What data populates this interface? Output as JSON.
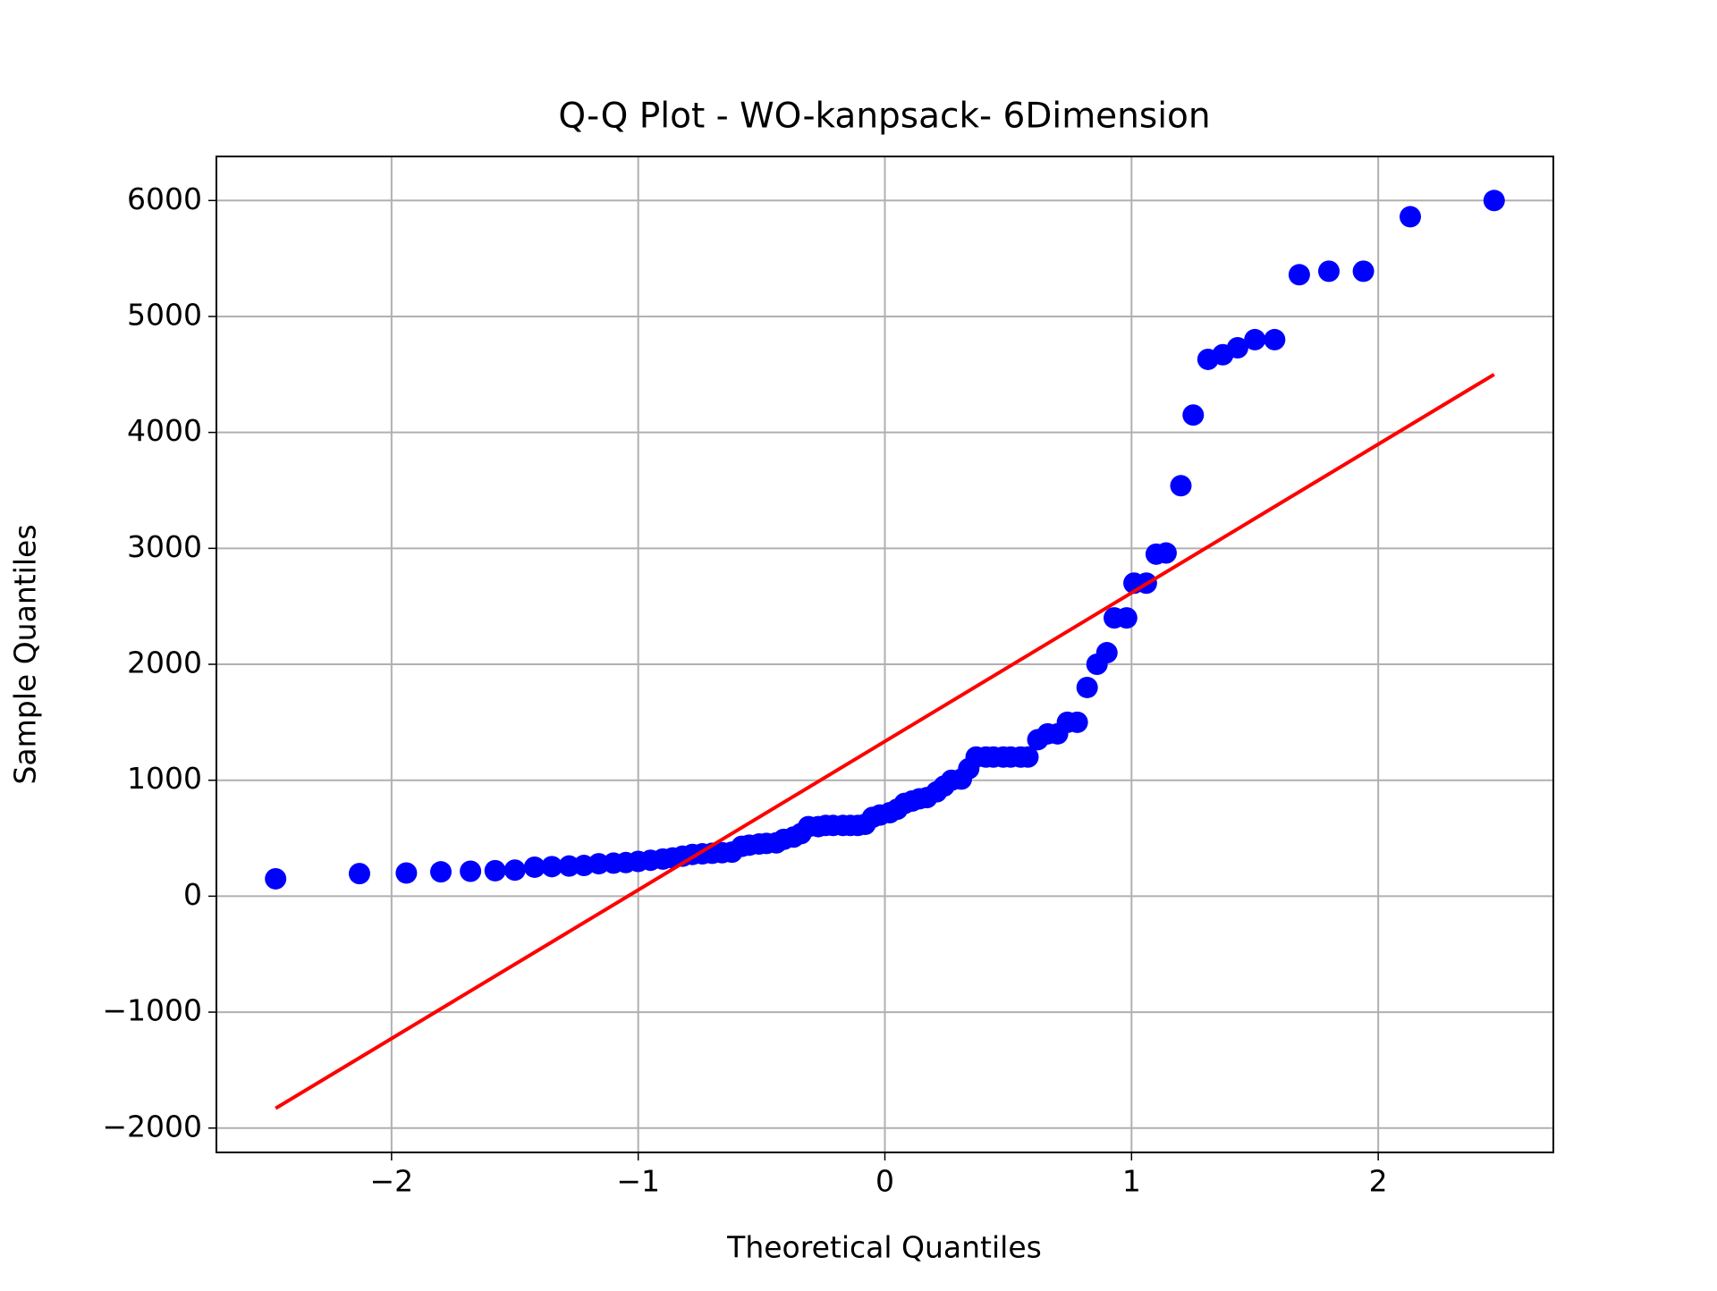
{
  "chart_data": {
    "type": "scatter",
    "title": "Q-Q Plot - WO-kanpsack- 6Dimension",
    "x_label": "Theoretical Quantiles",
    "y_label": "Sample Quantiles",
    "xlim": [
      -2.71,
      2.71
    ],
    "ylim": [
      -2210,
      6380
    ],
    "xticks": [
      {
        "value": -2,
        "label": "−2"
      },
      {
        "value": -1,
        "label": "−1"
      },
      0,
      1,
      2
    ],
    "yticks": [
      {
        "value": -2000,
        "label": "−2000"
      },
      {
        "value": -1000,
        "label": "−1000"
      },
      0,
      1000,
      2000,
      3000,
      4000,
      5000,
      6000
    ],
    "grid": true,
    "series": [
      {
        "color": "#0000ff",
        "x": [
          -2.47,
          -2.13,
          -1.94,
          -1.8,
          -1.68,
          -1.58,
          -1.5,
          -1.42,
          -1.35,
          -1.28,
          -1.22,
          -1.16,
          -1.1,
          -1.05,
          -1.0,
          -0.95,
          -0.9,
          -0.86,
          -0.82,
          -0.78,
          -0.74,
          -0.7,
          -0.66,
          -0.62,
          -0.58,
          -0.55,
          -0.51,
          -0.48,
          -0.44,
          -0.41,
          -0.37,
          -0.34,
          -0.31,
          -0.27,
          -0.24,
          -0.21,
          -0.17,
          -0.14,
          -0.11,
          -0.08,
          -0.05,
          -0.02,
          0.02,
          0.05,
          0.08,
          0.11,
          0.14,
          0.17,
          0.21,
          0.24,
          0.27,
          0.31,
          0.34,
          0.37,
          0.41,
          0.44,
          0.48,
          0.51,
          0.55,
          0.58,
          0.62,
          0.66,
          0.7,
          0.74,
          0.78,
          0.82,
          0.86,
          0.9,
          0.93,
          0.98,
          1.01,
          1.06,
          1.1,
          1.14,
          1.2,
          1.25,
          1.31,
          1.37,
          1.43,
          1.5,
          1.58,
          1.68,
          1.8,
          1.94,
          2.13,
          2.47
        ],
        "values": [
          150,
          195,
          200,
          210,
          215,
          220,
          225,
          250,
          255,
          260,
          265,
          280,
          285,
          290,
          300,
          310,
          320,
          330,
          345,
          360,
          365,
          370,
          375,
          380,
          430,
          440,
          450,
          455,
          460,
          490,
          510,
          540,
          600,
          600,
          610,
          610,
          610,
          610,
          610,
          620,
          680,
          700,
          720,
          750,
          800,
          820,
          840,
          850,
          900,
          950,
          1000,
          1010,
          1100,
          1200,
          1200,
          1200,
          1200,
          1200,
          1200,
          1200,
          1350,
          1400,
          1400,
          1500,
          1500,
          1800,
          2000,
          2100,
          2400,
          2400,
          2700,
          2700,
          2950,
          2960,
          3540,
          4150,
          4630,
          4670,
          4730,
          4800,
          4800,
          5360,
          5390,
          5390,
          5860,
          6000
        ]
      },
      {
        "type": "line",
        "color": "#ff0000",
        "x": [
          -2.47,
          2.47
        ],
        "values": [
          -1830,
          4500
        ]
      }
    ]
  }
}
